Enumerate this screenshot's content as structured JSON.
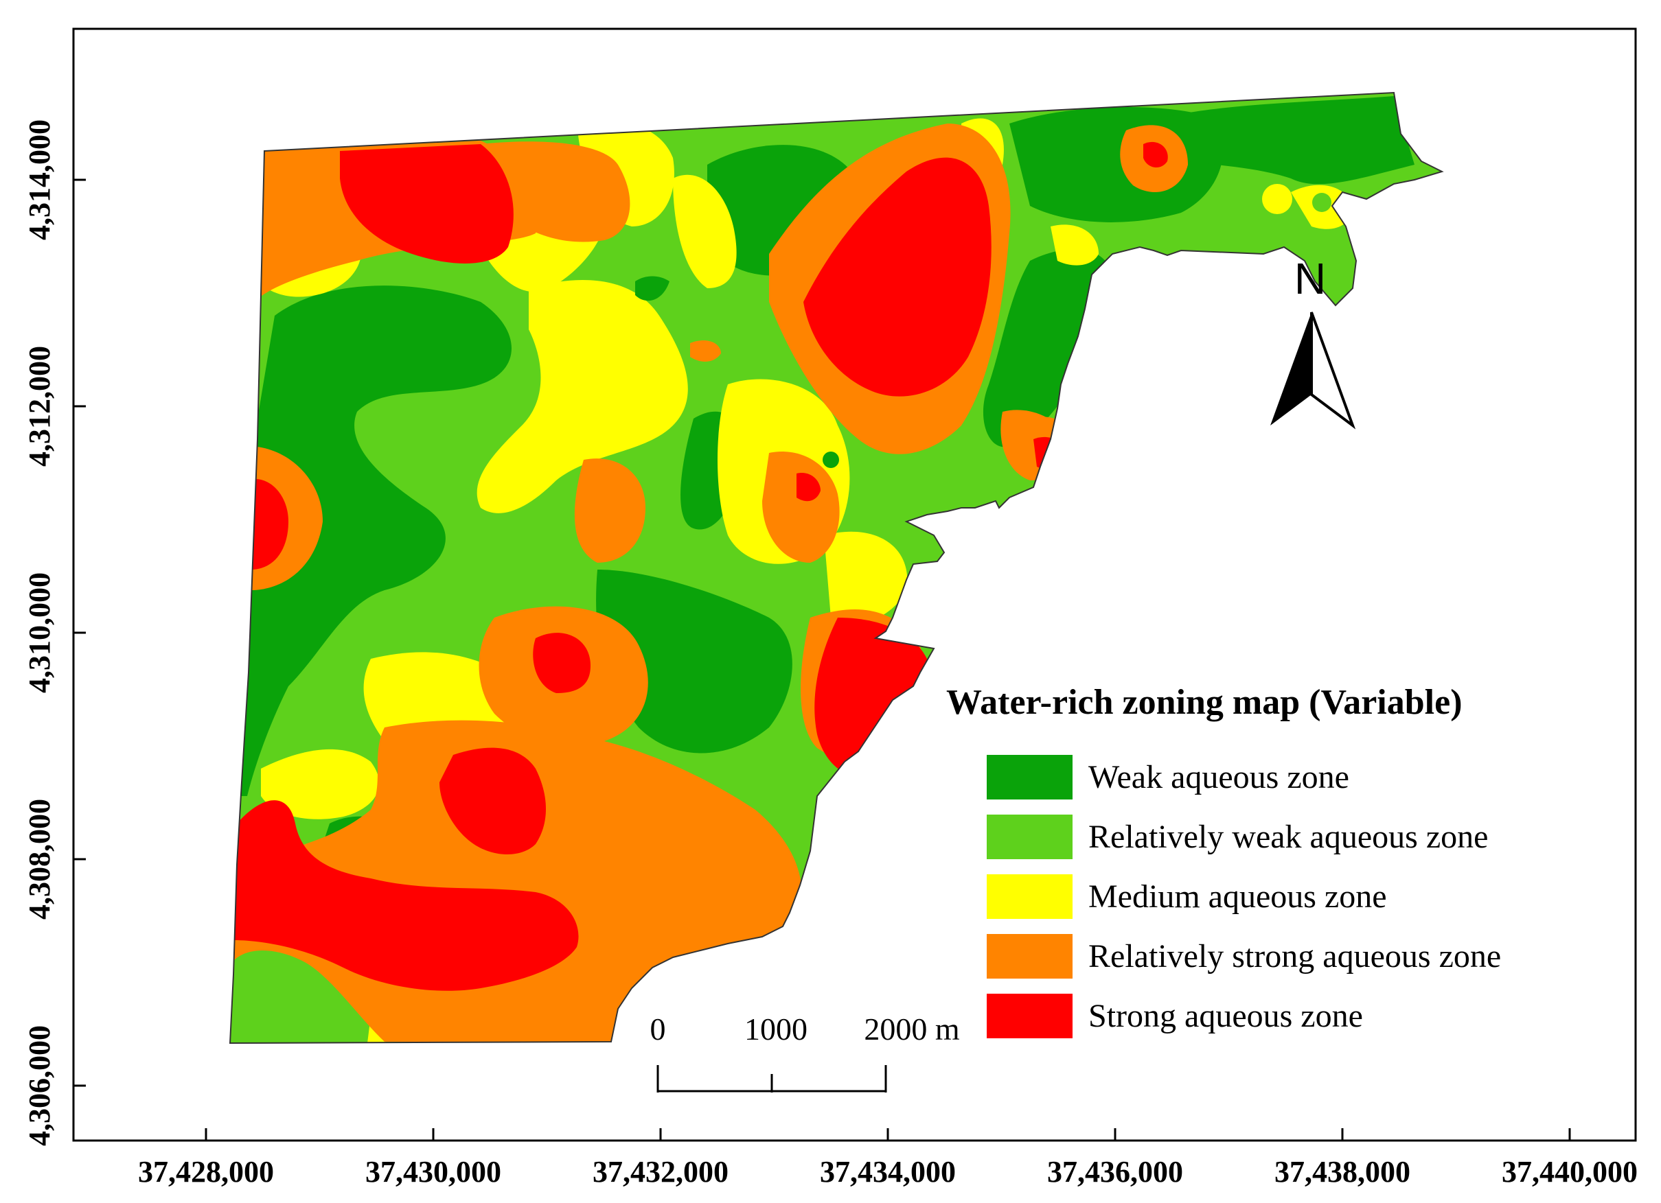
{
  "map": {
    "legend": {
      "title": "Water-rich zoning map (Variable)",
      "items": [
        {
          "label": "Weak aqueous zone",
          "color": "#0aa30a"
        },
        {
          "label": "Relatively weak aqueous zone",
          "color": "#5ed11c"
        },
        {
          "label": "Medium aqueous zone",
          "color": "#ffff00"
        },
        {
          "label": "Relatively strong aqueous zone",
          "color": "#ff8400"
        },
        {
          "label": "Strong aqueous zone",
          "color": "#ff0000"
        }
      ]
    },
    "x_ticks": [
      "37,428,000",
      "37,430,000",
      "37,432,000",
      "37,434,000",
      "37,436,000",
      "37,438,000",
      "37,440,000"
    ],
    "y_ticks": [
      "4,314,000",
      "4,312,000",
      "4,310,000",
      "4,308,000",
      "4,306,000"
    ],
    "scale_bar": {
      "labels": [
        "0",
        "1000",
        "2000 m"
      ]
    },
    "north_arrow": {
      "label": "N",
      "icon": "north-arrow-icon"
    }
  }
}
